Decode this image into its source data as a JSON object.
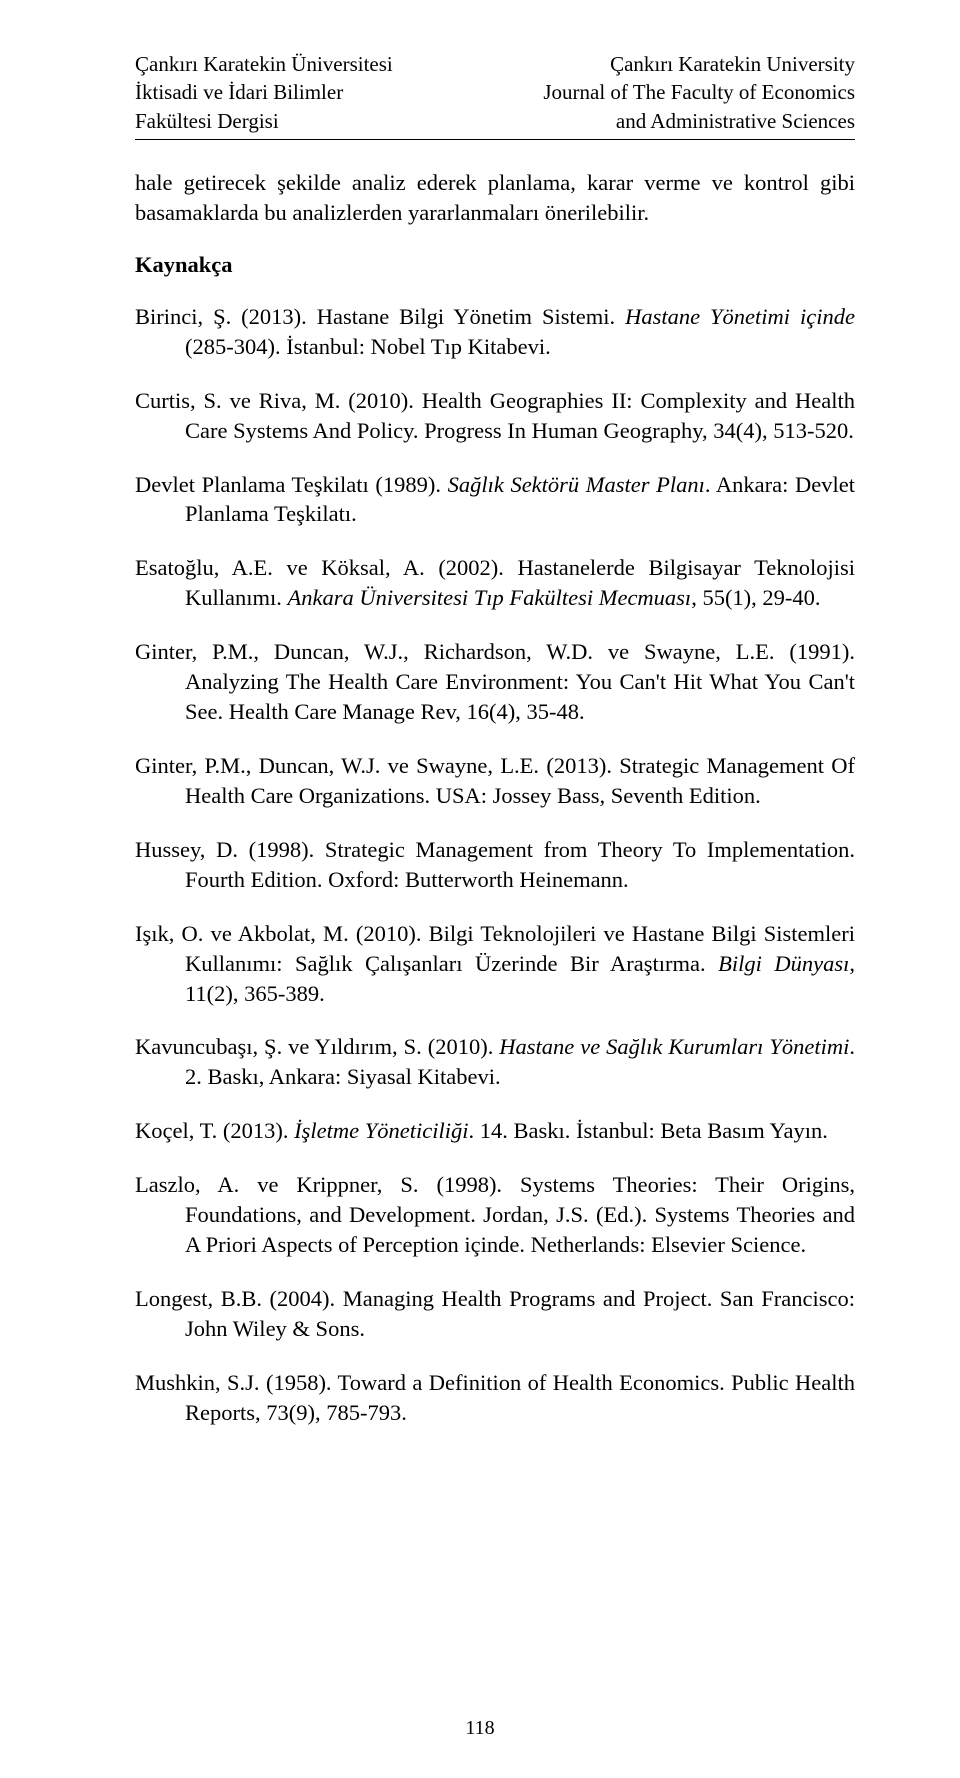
{
  "header": {
    "left": [
      "Çankırı Karatekin Üniversitesi",
      "İktisadi ve İdari Bilimler",
      "Fakültesi Dergisi"
    ],
    "right": [
      "Çankırı Karatekin University",
      "Journal of The Faculty of Economics",
      "and Administrative Sciences"
    ]
  },
  "intro": "hale getirecek şekilde analiz ederek planlama, karar verme ve kontrol gibi basamaklarda bu analizlerden yararlanmaları önerilebilir.",
  "section_heading": "Kaynakça",
  "refs": [
    [
      {
        "t": "Birinci, Ş. (2013). Hastane Bilgi Yönetim Sistemi. ",
        "i": false
      },
      {
        "t": "Hastane Yönetimi içinde",
        "i": true
      },
      {
        "t": " (285-304). İstanbul: Nobel Tıp Kitabevi.",
        "i": false
      }
    ],
    [
      {
        "t": "Curtis, S. ve Riva, M. (2010). Health Geographies II: Complexity and Health Care Systems And Policy. Progress In Human Geography, 34(4), 513-520.",
        "i": false
      }
    ],
    [
      {
        "t": "Devlet Planlama Teşkilatı (1989). ",
        "i": false
      },
      {
        "t": "Sağlık Sektörü Master Planı",
        "i": true
      },
      {
        "t": ". Ankara: Devlet Planlama Teşkilatı.",
        "i": false
      }
    ],
    [
      {
        "t": "Esatoğlu, A.E. ve Köksal, A. (2002). Hastanelerde Bilgisayar Teknolojisi Kullanımı. ",
        "i": false
      },
      {
        "t": "Ankara Üniversitesi Tıp Fakültesi Mecmuası",
        "i": true
      },
      {
        "t": ", 55(1), 29-40.",
        "i": false
      }
    ],
    [
      {
        "t": "Ginter, P.M., Duncan, W.J., Richardson, W.D. ve Swayne, L.E. (1991). Analyzing The Health Care Environment: You Can't Hit What You Can't See. Health Care Manage Rev, 16(4), 35-48.",
        "i": false
      }
    ],
    [
      {
        "t": "Ginter, P.M., Duncan, W.J. ve Swayne, L.E. (2013). Strategic Management Of Health Care Organizations. USA: Jossey Bass, Seventh Edition.",
        "i": false
      }
    ],
    [
      {
        "t": "Hussey, D. (1998). Strategic Management from Theory To Implementation. Fourth Edition. Oxford: Butterworth Heinemann.",
        "i": false
      }
    ],
    [
      {
        "t": "Işık, O. ve Akbolat, M. (2010). Bilgi Teknolojileri ve Hastane Bilgi Sistemleri Kullanımı: Sağlık Çalışanları Üzerinde Bir Araştırma. ",
        "i": false
      },
      {
        "t": "Bilgi Dünyası",
        "i": true
      },
      {
        "t": ", 11(2), 365-389.",
        "i": false
      }
    ],
    [
      {
        "t": "Kavuncubaşı, Ş. ve Yıldırım, S. (2010). ",
        "i": false
      },
      {
        "t": "Hastane ve Sağlık Kurumları Yönetimi",
        "i": true
      },
      {
        "t": ". 2. Baskı, Ankara: Siyasal Kitabevi.",
        "i": false
      }
    ],
    [
      {
        "t": "Koçel, T. (2013). ",
        "i": false
      },
      {
        "t": "İşletme Yöneticiliği",
        "i": true
      },
      {
        "t": ". 14. Baskı. İstanbul: Beta Basım Yayın.",
        "i": false
      }
    ],
    [
      {
        "t": "Laszlo, A. ve Krippner, S. (1998). Systems Theories: Their Origins, Foundations, and Development. Jordan, J.S. (Ed.). Systems Theories and A Priori Aspects of Perception içinde. Netherlands: Elsevier Science.",
        "i": false
      }
    ],
    [
      {
        "t": "Longest, B.B. (2004). Managing Health Programs and Project. San Francisco: John Wiley & Sons.",
        "i": false
      }
    ],
    [
      {
        "t": "Mushkin, S.J. (1958). Toward a Definition of Health Economics. Public Health Reports, 73(9), 785-793.",
        "i": false
      }
    ]
  ],
  "page_number": "118"
}
